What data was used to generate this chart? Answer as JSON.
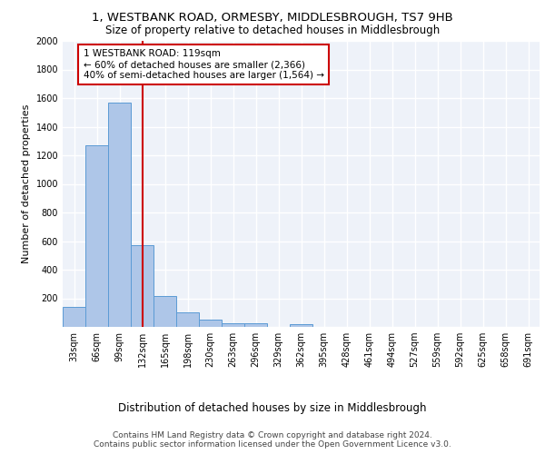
{
  "title1": "1, WESTBANK ROAD, ORMESBY, MIDDLESBROUGH, TS7 9HB",
  "title2": "Size of property relative to detached houses in Middlesbrough",
  "xlabel": "Distribution of detached houses by size in Middlesbrough",
  "ylabel": "Number of detached properties",
  "categories": [
    "33sqm",
    "66sqm",
    "99sqm",
    "132sqm",
    "165sqm",
    "198sqm",
    "230sqm",
    "263sqm",
    "296sqm",
    "329sqm",
    "362sqm",
    "395sqm",
    "428sqm",
    "461sqm",
    "494sqm",
    "527sqm",
    "559sqm",
    "592sqm",
    "625sqm",
    "658sqm",
    "691sqm"
  ],
  "values": [
    140,
    1270,
    1570,
    570,
    215,
    100,
    50,
    25,
    25,
    0,
    20,
    0,
    0,
    0,
    0,
    0,
    0,
    0,
    0,
    0,
    0
  ],
  "bar_color": "#aec6e8",
  "bar_edge_color": "#5b9bd5",
  "background_color": "#eef2f9",
  "grid_color": "#ffffff",
  "vline_x": 3,
  "vline_color": "#cc0000",
  "annotation_text": "1 WESTBANK ROAD: 119sqm\n← 60% of detached houses are smaller (2,366)\n40% of semi-detached houses are larger (1,564) →",
  "annotation_box_color": "#ffffff",
  "annotation_box_edge": "#cc0000",
  "ylim": [
    0,
    2000
  ],
  "yticks": [
    0,
    200,
    400,
    600,
    800,
    1000,
    1200,
    1400,
    1600,
    1800,
    2000
  ],
  "footer1": "Contains HM Land Registry data © Crown copyright and database right 2024.",
  "footer2": "Contains public sector information licensed under the Open Government Licence v3.0.",
  "title1_fontsize": 9.5,
  "title2_fontsize": 8.5,
  "xlabel_fontsize": 8.5,
  "ylabel_fontsize": 8,
  "tick_fontsize": 7,
  "footer_fontsize": 6.5,
  "ann_fontsize": 7.5
}
